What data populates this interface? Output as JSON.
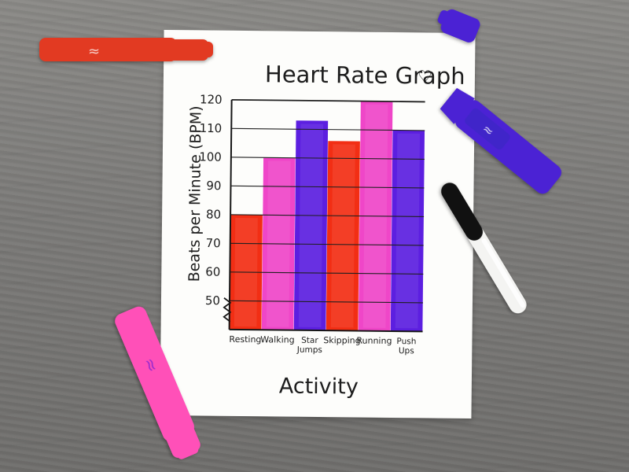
{
  "chart_data": {
    "type": "bar",
    "title": "Heart Rate Graph",
    "xlabel": "Activity",
    "ylabel": "Beats per Minute (BPM)",
    "ylim": [
      40,
      120
    ],
    "yticks": [
      "50",
      "60",
      "70",
      "80",
      "90",
      "100",
      "110",
      "120"
    ],
    "grid": true,
    "categories": [
      {
        "name": "Resting",
        "lines": [
          "Resting"
        ],
        "value": 80,
        "color": "#f22e14"
      },
      {
        "name": "Walking",
        "lines": [
          "Walking"
        ],
        "value": 100,
        "color": "#ef46c8"
      },
      {
        "name": "Star Jumps",
        "lines": [
          "Star",
          "Jumps"
        ],
        "value": 113,
        "color": "#5c1fe0"
      },
      {
        "name": "Skipping",
        "lines": [
          "Skipping"
        ],
        "value": 106,
        "color": "#f22e14"
      },
      {
        "name": "Running",
        "lines": [
          "Running"
        ],
        "value": 120,
        "color": "#ef46c8"
      },
      {
        "name": "Push Ups",
        "lines": [
          "Push",
          "Ups"
        ],
        "value": 110,
        "color": "#5c1fe0"
      }
    ]
  },
  "markers": {
    "red": "#e23a22",
    "pink": "#ff50b8",
    "purple": "#4b22d4",
    "pen": "#111111"
  }
}
